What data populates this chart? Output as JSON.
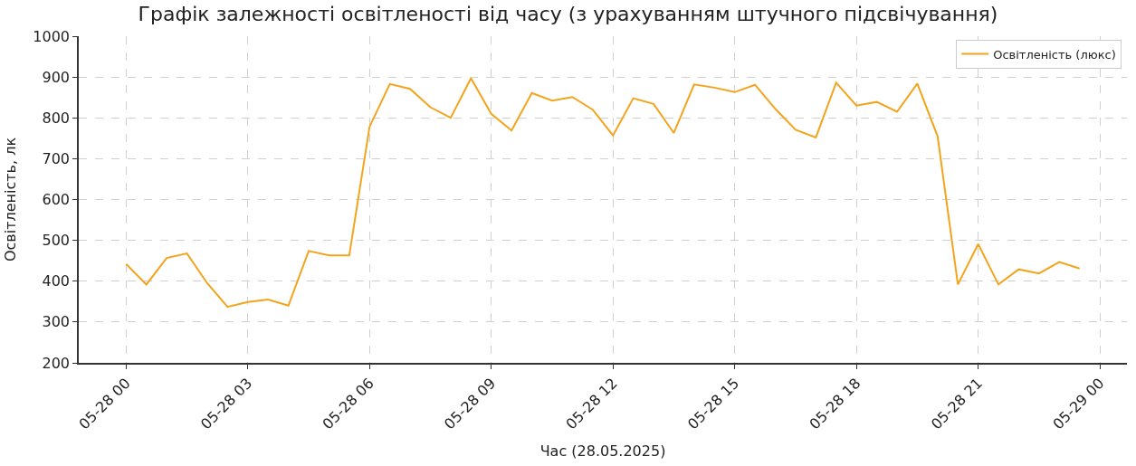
{
  "chart_data": {
    "type": "line",
    "title": "Графік залежності освітленості від часу (з урахуванням штучного підсвічування)",
    "xlabel": "Час (28.05.2025)",
    "ylabel": "Освітленість, лк",
    "x": [
      "2025-05-28T00:00",
      "2025-05-28T00:30",
      "2025-05-28T01:00",
      "2025-05-28T01:30",
      "2025-05-28T02:00",
      "2025-05-28T02:30",
      "2025-05-28T03:00",
      "2025-05-28T03:30",
      "2025-05-28T04:00",
      "2025-05-28T04:30",
      "2025-05-28T05:00",
      "2025-05-28T05:30",
      "2025-05-28T06:00",
      "2025-05-28T06:30",
      "2025-05-28T07:00",
      "2025-05-28T07:30",
      "2025-05-28T08:00",
      "2025-05-28T08:30",
      "2025-05-28T09:00",
      "2025-05-28T09:30",
      "2025-05-28T10:00",
      "2025-05-28T10:30",
      "2025-05-28T11:00",
      "2025-05-28T11:30",
      "2025-05-28T12:00",
      "2025-05-28T12:30",
      "2025-05-28T13:00",
      "2025-05-28T13:30",
      "2025-05-28T14:00",
      "2025-05-28T14:30",
      "2025-05-28T15:00",
      "2025-05-28T15:30",
      "2025-05-28T16:00",
      "2025-05-28T16:30",
      "2025-05-28T17:00",
      "2025-05-28T17:30",
      "2025-05-28T18:00",
      "2025-05-28T18:30",
      "2025-05-28T19:00",
      "2025-05-28T19:30",
      "2025-05-28T20:00",
      "2025-05-28T20:30",
      "2025-05-28T21:00",
      "2025-05-28T21:30",
      "2025-05-28T22:00",
      "2025-05-28T22:30",
      "2025-05-28T23:00",
      "2025-05-28T23:30"
    ],
    "series": [
      {
        "name": "Освітленість (люкс)",
        "color": "#f4a41c",
        "values": [
          442,
          392,
          457,
          468,
          395,
          337,
          349,
          355,
          340,
          474,
          463,
          463,
          778,
          883,
          871,
          826,
          800,
          897,
          810,
          769,
          861,
          842,
          851,
          820,
          757,
          848,
          834,
          763,
          882,
          874,
          863,
          881,
          822,
          771,
          752,
          886,
          830,
          839,
          815,
          884,
          755,
          392,
          491,
          392,
          429,
          419,
          447,
          431
        ]
      }
    ],
    "xlim": [
      "2025-05-27T22:50",
      "2025-05-29T00:40"
    ],
    "xticks": [
      {
        "value": "2025-05-28T00:00",
        "label": "05-28 00"
      },
      {
        "value": "2025-05-28T03:00",
        "label": "05-28 03"
      },
      {
        "value": "2025-05-28T06:00",
        "label": "05-28 06"
      },
      {
        "value": "2025-05-28T09:00",
        "label": "05-28 09"
      },
      {
        "value": "2025-05-28T12:00",
        "label": "05-28 12"
      },
      {
        "value": "2025-05-28T15:00",
        "label": "05-28 15"
      },
      {
        "value": "2025-05-28T18:00",
        "label": "05-28 18"
      },
      {
        "value": "2025-05-28T21:00",
        "label": "05-28 21"
      },
      {
        "value": "2025-05-29T00:00",
        "label": "05-29 00"
      }
    ],
    "ylim": [
      200,
      1000
    ],
    "yticks": [
      200,
      300,
      400,
      500,
      600,
      700,
      800,
      900,
      1000
    ],
    "grid": true,
    "legend": "top right",
    "line_style": "solid"
  }
}
